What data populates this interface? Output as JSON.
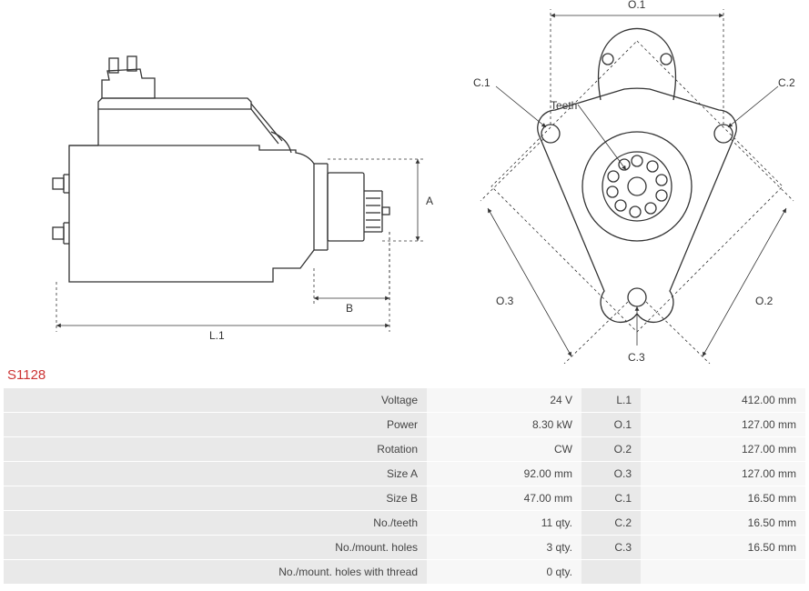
{
  "product_code": "S1128",
  "diagram": {
    "side_labels": {
      "L1": "L.1",
      "A": "A",
      "B": "B"
    },
    "front_labels": {
      "O1": "O.1",
      "O2": "O.2",
      "O3": "O.3",
      "C1": "C.1",
      "C2": "C.2",
      "C3": "C.3",
      "teeth": "Teeth"
    },
    "colors": {
      "stroke": "#333333",
      "background": "#ffffff",
      "dash": "3 3"
    }
  },
  "specs_left": [
    {
      "label": "Voltage",
      "value": "24 V"
    },
    {
      "label": "Power",
      "value": "8.30 kW"
    },
    {
      "label": "Rotation",
      "value": "CW"
    },
    {
      "label": "Size A",
      "value": "92.00 mm"
    },
    {
      "label": "Size B",
      "value": "47.00 mm"
    },
    {
      "label": "No./teeth",
      "value": "11 qty."
    },
    {
      "label": "No./mount. holes",
      "value": "3 qty."
    },
    {
      "label": "No./mount. holes with thread",
      "value": "0 qty."
    }
  ],
  "specs_right": [
    {
      "label": "L.1",
      "value": "412.00 mm"
    },
    {
      "label": "O.1",
      "value": "127.00 mm"
    },
    {
      "label": "O.2",
      "value": "127.00 mm"
    },
    {
      "label": "O.3",
      "value": "127.00 mm"
    },
    {
      "label": "C.1",
      "value": "16.50 mm"
    },
    {
      "label": "C.2",
      "value": "16.50 mm"
    },
    {
      "label": "C.3",
      "value": "16.50 mm"
    }
  ]
}
